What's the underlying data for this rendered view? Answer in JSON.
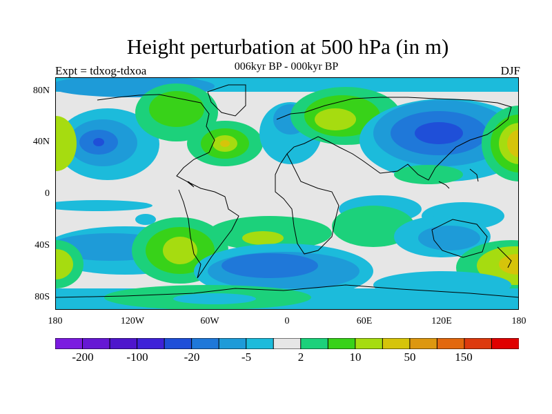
{
  "title": "Height perturbation at 500 hPa (in m)",
  "subtitle": "006kyr BP - 000kyr BP",
  "left_label": "Expt = tdxog-tdxoa",
  "right_label": "DJF",
  "axes": {
    "y_ticks": [
      "80N",
      "40N",
      "0",
      "40S",
      "80S"
    ],
    "x_ticks": [
      "180",
      "120W",
      "60W",
      "0",
      "60E",
      "120E",
      "180"
    ]
  },
  "colorbar": {
    "colors": [
      "#7b1be0",
      "#6618d4",
      "#4e16cc",
      "#3e22d8",
      "#1f4fd8",
      "#1f78d9",
      "#1e9bd8",
      "#1cbbdb",
      "#e6e6e6",
      "#1cd17b",
      "#38d219",
      "#a6dc10",
      "#d6c40a",
      "#dd9710",
      "#e2680e",
      "#dd3a0e",
      "#e00000"
    ],
    "labels": [
      "-200",
      "-100",
      "-20",
      "-5",
      "2",
      "10",
      "50",
      "150"
    ],
    "levels": [
      -200,
      -150,
      -100,
      -50,
      -20,
      -10,
      -5,
      -2,
      2,
      5,
      10,
      20,
      50,
      100,
      150,
      200
    ]
  },
  "chart_data": {
    "type": "contour-map",
    "variable": "Height perturbation at 500 hPa",
    "units": "m",
    "season": "DJF",
    "lon_range": [
      -180,
      180
    ],
    "lat_range": [
      -90,
      90
    ],
    "anomaly_centers": [
      {
        "lon": -145,
        "lat": 40,
        "level": -20
      },
      {
        "lon": -100,
        "lat": 65,
        "level": 10
      },
      {
        "lon": -55,
        "lat": 40,
        "level": 20
      },
      {
        "lon": 0,
        "lat": 55,
        "level": -5
      },
      {
        "lon": 50,
        "lat": 60,
        "level": 10
      },
      {
        "lon": 100,
        "lat": 40,
        "level": -20
      },
      {
        "lon": 170,
        "lat": 40,
        "level": 20
      },
      {
        "lon": -100,
        "lat": -40,
        "level": 20
      },
      {
        "lon": -50,
        "lat": -60,
        "level": -20
      },
      {
        "lon": 150,
        "lat": -50,
        "level": 20
      }
    ]
  }
}
